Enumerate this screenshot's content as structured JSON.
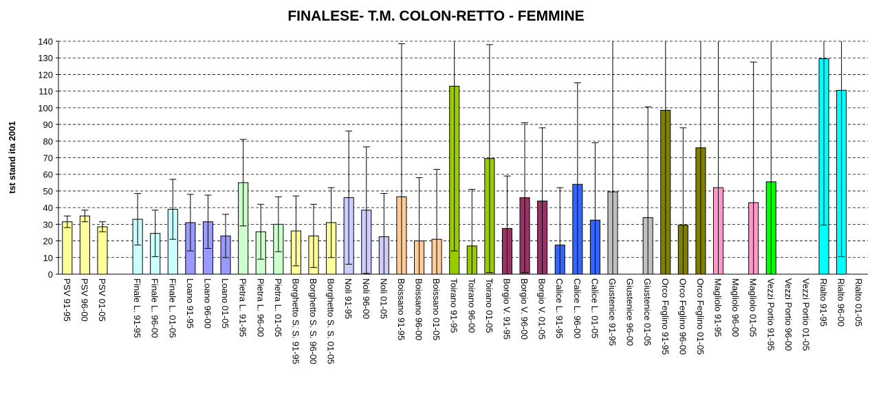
{
  "chart_data": {
    "type": "bar",
    "title": "FINALESE- T.M. COLON-RETTO - FEMMINE",
    "y_label": "tst stand ita 2001",
    "categories": [
      "PSV 91-95",
      "PSV 96-00",
      "PSV 01-05",
      null,
      "Finale L. 91-95",
      "Finale L. 96-00",
      "Finale L. 01-05",
      "Loano 91-95",
      "Loano 96-00",
      "Loano 01-05",
      "Pietra L. 91-95",
      "Pietra L. 96-00",
      "Pietra L. 01-05",
      "Borghetto S. S. 91-95",
      "Borghetto S. S. 96-00",
      "Borghetto S. S. 01-05",
      "Noli 91-95",
      "Noli 96-00",
      "Noli 01-05",
      "Boissano 91-95",
      "Boissano 96-00",
      "Boissano 01-05",
      "Toirano 91-95",
      "Toirano 96-00",
      "Toirano 01-05",
      "Borgio V. 91-95",
      "Borgio V. 96-00",
      "Borgio V. 01-05",
      "Calice L. 91-95",
      "Calice L. 96-00",
      "Calice L. 01-05",
      "Giustenice 91-95",
      "Giustenice 96-00",
      "Giustenice 01-05",
      "Orco Feglino 91-95",
      "Orco Feglino 96-00",
      "Orco Feglino 01-05",
      "Magliolo 91-95",
      "Magliolo 96-00",
      "Magliolo 01-05",
      "Vezzi Portio 91-95",
      "Vezzi Portio 96-00",
      "Vezzi Portio 01-05",
      "Rialto 91-95",
      "Rialto 96-00",
      "Rialto 01-05"
    ],
    "values": [
      31.5,
      35,
      28.5,
      null,
      33,
      24.5,
      39,
      31,
      31.5,
      23,
      55,
      25.5,
      30,
      26,
      23,
      31,
      46,
      38.5,
      22.5,
      46.5,
      20,
      21,
      113,
      17,
      69.5,
      27.5,
      46,
      44,
      17.5,
      54,
      32.5,
      49.5,
      0,
      34,
      98.5,
      29.5,
      76,
      52,
      0,
      43,
      55.5,
      0,
      0,
      129.5,
      110.5,
      0
    ],
    "errors": [
      3.5,
      3.5,
      3,
      null,
      15.5,
      14,
      18,
      17,
      16,
      13,
      26,
      16.5,
      16.5,
      21,
      19,
      21,
      40,
      38,
      26,
      92,
      38,
      42,
      99,
      34,
      68.5,
      31.5,
      45,
      44,
      34.5,
      61,
      46.5,
      100,
      0,
      66.5,
      100,
      58.5,
      100,
      100,
      0,
      84.5,
      100,
      0,
      0,
      100,
      100,
      0
    ],
    "colors": [
      "#ffff99",
      "#ffff99",
      "#ffff99",
      null,
      "#ccffff",
      "#ccffff",
      "#ccffff",
      "#9999ff",
      "#9999ff",
      "#9999ff",
      "#ccffcc",
      "#ccffcc",
      "#ccffcc",
      "#ffff99",
      "#ffff99",
      "#ffff99",
      "#ccccff",
      "#ccccff",
      "#ccccff",
      "#ffcc99",
      "#ffcc99",
      "#ffcc99",
      "#99cc00",
      "#99cc00",
      "#99cc00",
      "#993366",
      "#993366",
      "#993366",
      "#3366ff",
      "#3366ff",
      "#3366ff",
      "#c0c0c0",
      "#c0c0c0",
      "#c0c0c0",
      "#808000",
      "#808000",
      "#808000",
      "#ff99cc",
      "#ff99cc",
      "#ff99cc",
      "#00ff00",
      "#00ff00",
      "#00ff00",
      "#00ffff",
      "#00ffff",
      "#00ffff"
    ],
    "ylim": [
      0,
      140
    ],
    "yticks": [
      0,
      10,
      20,
      30,
      40,
      50,
      60,
      70,
      80,
      90,
      100,
      110,
      120,
      130,
      140
    ],
    "grid": true
  }
}
